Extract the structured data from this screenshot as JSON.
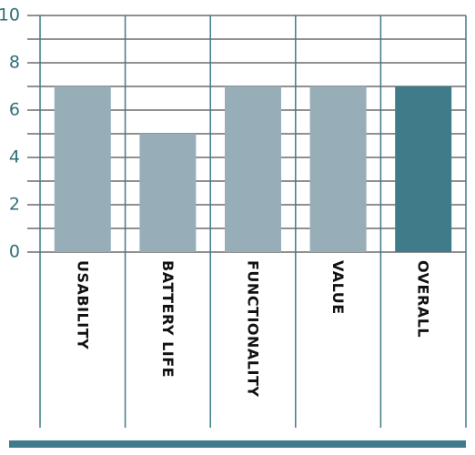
{
  "chart_data": {
    "type": "bar",
    "categories": [
      "USABILITY",
      "BATTERY LIFE",
      "FUNCTIONALITY",
      "VALUE",
      "OVERALL"
    ],
    "values": [
      7,
      5,
      7,
      7,
      7
    ],
    "colors": [
      "#97adb7",
      "#97adb7",
      "#97adb7",
      "#97adb7",
      "#3f7b88"
    ],
    "ylim": [
      0,
      10
    ],
    "yticks": [
      0,
      2,
      4,
      6,
      8,
      10
    ],
    "minor_yticks": [
      1,
      3,
      5,
      7,
      9
    ],
    "grid": true
  }
}
